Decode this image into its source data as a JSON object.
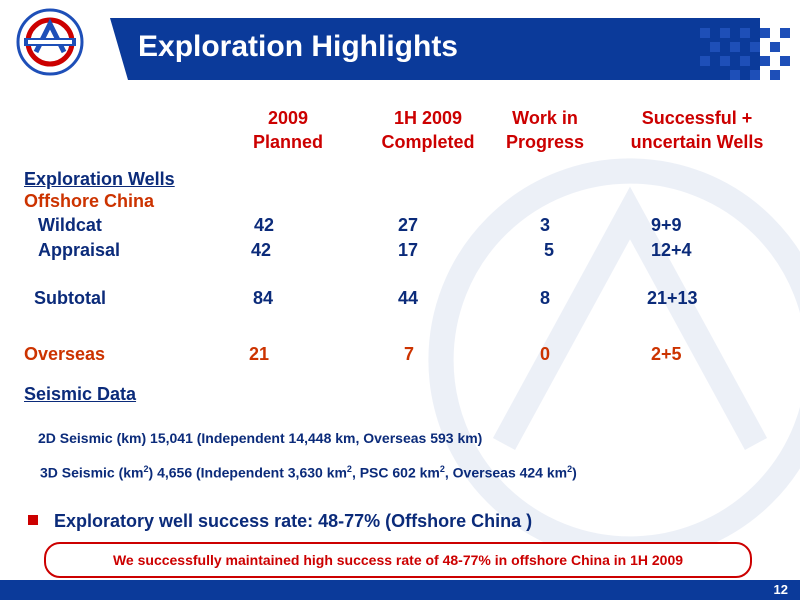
{
  "header": {
    "title": "Exploration Highlights"
  },
  "columns": {
    "c1": [
      "2009",
      "Planned"
    ],
    "c2": [
      "1H 2009",
      "Completed"
    ],
    "c3": [
      "Work in",
      "Progress"
    ],
    "c4": [
      "Successful +",
      "uncertain Wells"
    ]
  },
  "sections": {
    "wells_heading": "Exploration Wells",
    "offshore_heading": "Offshore China",
    "seismic_heading": "Seismic Data"
  },
  "rows": {
    "wildcat": {
      "label": "Wildcat",
      "c1": "42",
      "c2": "27",
      "c3": "3",
      "c4": "9+9"
    },
    "appraisal": {
      "label": "Appraisal",
      "c1": "42",
      "c2": "17",
      "c3": "5",
      "c4": "12+4"
    },
    "subtotal": {
      "label": "Subtotal",
      "c1": "84",
      "c2": "44",
      "c3": "8",
      "c4": "21+13"
    },
    "overseas": {
      "label": "Overseas",
      "c1": "21",
      "c2": "7",
      "c3": "0",
      "c4": "2+5"
    }
  },
  "seismic": {
    "s2d": "2D Seismic (km)   15,041 (Independent 14,448 km, Overseas  593 km)",
    "s3d_a": "3D Seismic (km",
    "s3d_b": ")  4,656 (Independent 3,630 km",
    "s3d_c": ", PSC 602 km",
    "s3d_d": ", Overseas  424 km",
    "s3d_e": ")",
    "sup": "2"
  },
  "bullet": "Exploratory well success rate: 48-77% (Offshore China )",
  "callout": "We successfully maintained high success rate of 48-77% in offshore China in 1H 2009",
  "page_number": "12",
  "colors": {
    "brand": "#0b3a9a",
    "accent": "#cc0000",
    "text": "#0b2b7a"
  }
}
